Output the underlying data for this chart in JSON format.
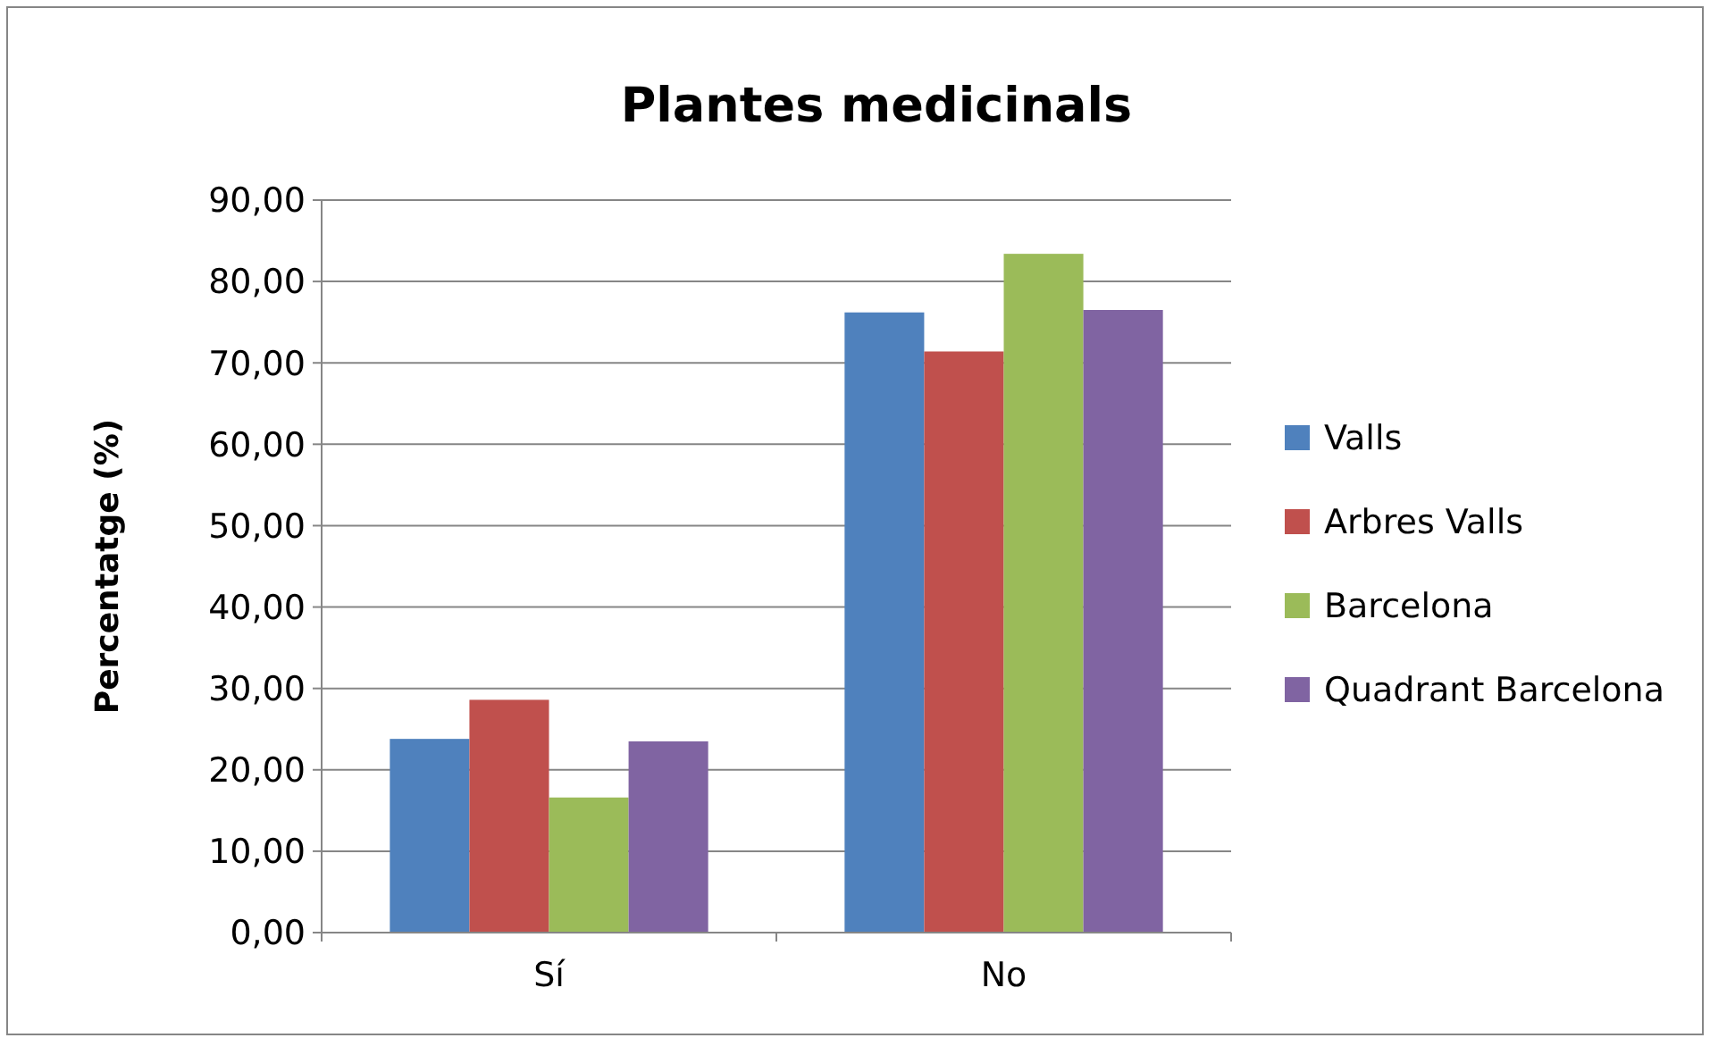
{
  "chart_data": {
    "type": "bar",
    "title": "Plantes medicinals",
    "ylabel": "Percentatge (%)",
    "categories": [
      "Sí",
      "No"
    ],
    "series": [
      {
        "name": "Valls",
        "color": "#4f81bd",
        "values": [
          23.8,
          76.2
        ]
      },
      {
        "name": "Arbres Valls",
        "color": "#c0504d",
        "values": [
          28.6,
          71.4
        ]
      },
      {
        "name": "Barcelona",
        "color": "#9bbb59",
        "values": [
          16.6,
          83.4
        ]
      },
      {
        "name": "Quadrant Barcelona",
        "color": "#8064a2",
        "values": [
          23.5,
          76.5
        ]
      }
    ],
    "ylim": [
      0,
      90
    ],
    "yticks": [
      {
        "value": 0,
        "label": "0,00"
      },
      {
        "value": 10,
        "label": "10,00"
      },
      {
        "value": 20,
        "label": "20,00"
      },
      {
        "value": 30,
        "label": "30,00"
      },
      {
        "value": 40,
        "label": "40,00"
      },
      {
        "value": 50,
        "label": "50,00"
      },
      {
        "value": 60,
        "label": "60,00"
      },
      {
        "value": 70,
        "label": "70,00"
      },
      {
        "value": 80,
        "label": "80,00"
      },
      {
        "value": 90,
        "label": "90,00"
      }
    ],
    "grid": "y",
    "legend": "right"
  }
}
